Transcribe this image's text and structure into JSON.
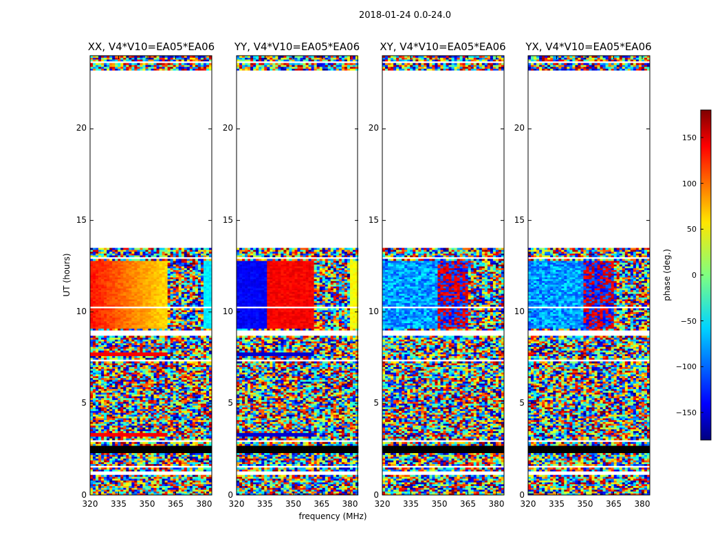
{
  "suptitle": "2018-01-24 0.0-24.0",
  "colorscale": [
    "#00007f",
    "#0000ff",
    "#0080ff",
    "#00ffff",
    "#80ff80",
    "#ffff00",
    "#ff8000",
    "#ff0000",
    "#7f0000"
  ],
  "chart_data": {
    "type": "heatmap",
    "x_range_mhz": [
      320,
      384
    ],
    "y_range_hours": [
      0,
      24
    ],
    "y_empty_hours": [
      13.4,
      23.2
    ],
    "panels": [
      {
        "title": "XX, V4*V10=EA05*EA06",
        "ylabel": "UT (hours)",
        "xlabel": "",
        "xticks": [
          "320",
          "335",
          "350",
          "365",
          "380"
        ],
        "yticks": [
          "0",
          "5",
          "10",
          "15",
          "20"
        ]
      },
      {
        "title": "YY, V4*V10=EA05*EA06",
        "ylabel": "",
        "xlabel": "frequency (MHz)",
        "xticks": [
          "320",
          "335",
          "350",
          "365",
          "380"
        ],
        "yticks": [
          "0",
          "5",
          "10",
          "15",
          "20"
        ]
      },
      {
        "title": "XY, V4*V10=EA05*EA06",
        "ylabel": "",
        "xlabel": "",
        "xticks": [
          "320",
          "335",
          "350",
          "365",
          "380"
        ],
        "yticks": [
          "0",
          "5",
          "10",
          "15",
          "20"
        ]
      },
      {
        "title": "YX, V4*V10=EA05*EA06",
        "ylabel": "",
        "xlabel": "",
        "xticks": [
          "320",
          "335",
          "350",
          "365",
          "380"
        ],
        "yticks": [
          "0",
          "5",
          "10",
          "15",
          "20"
        ]
      }
    ],
    "colorbar": {
      "label": "phase (deg.)",
      "range": [
        -180,
        180
      ],
      "ticks": [
        "150",
        "100",
        "50",
        "0",
        "−50",
        "−100",
        "−150"
      ]
    }
  }
}
